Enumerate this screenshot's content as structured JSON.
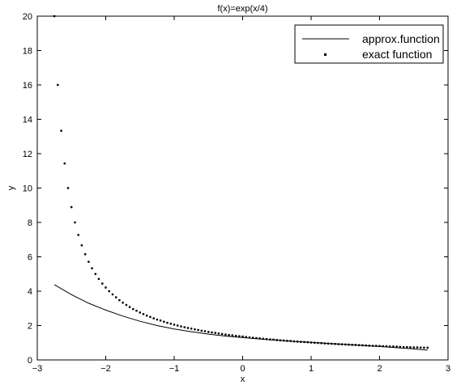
{
  "chart_data": {
    "type": "line",
    "title": "f(x)=exp(x/4)",
    "xlabel": "x",
    "ylabel": "y",
    "xlim": [
      -3,
      3
    ],
    "ylim": [
      0,
      20
    ],
    "xticks": [
      -3,
      -2,
      -1,
      0,
      1,
      2,
      3
    ],
    "yticks": [
      0,
      2,
      4,
      6,
      8,
      10,
      12,
      14,
      16,
      18,
      20
    ],
    "grid": false,
    "legend_position": "top-right",
    "colors": {
      "line": "#000000",
      "background": "#ffffff",
      "axes": "#000000"
    },
    "series": [
      {
        "name": "approx.function",
        "style": "solid-line",
        "x": [
          -2.75,
          -2.5,
          -2.25,
          -2.0,
          -1.75,
          -1.5,
          -1.25,
          -1.0,
          -0.75,
          -0.5,
          -0.25,
          0.0,
          0.25,
          0.5,
          0.75,
          1.0,
          1.25,
          1.5,
          1.75,
          2.0,
          2.25,
          2.5,
          2.7
        ],
        "y": [
          4.38,
          3.8,
          3.3,
          2.9,
          2.55,
          2.25,
          2.0,
          1.8,
          1.64,
          1.5,
          1.39,
          1.3,
          1.22,
          1.15,
          1.08,
          1.02,
          0.96,
          0.9,
          0.84,
          0.78,
          0.71,
          0.64,
          0.57
        ]
      },
      {
        "name": "exact function",
        "style": "dots",
        "x": [
          -2.75,
          -2.7,
          -2.65,
          -2.6,
          -2.55,
          -2.5,
          -2.45,
          -2.4,
          -2.35,
          -2.3,
          -2.25,
          -2.2,
          -2.15,
          -2.1,
          -2.05,
          -2.0,
          -1.95,
          -1.9,
          -1.85,
          -1.8,
          -1.75,
          -1.7,
          -1.65,
          -1.6,
          -1.55,
          -1.5,
          -1.45,
          -1.4,
          -1.35,
          -1.3,
          -1.25,
          -1.2,
          -1.15,
          -1.1,
          -1.05,
          -1.0,
          -0.95,
          -0.9,
          -0.85,
          -0.8,
          -0.75,
          -0.7,
          -0.65,
          -0.6,
          -0.55,
          -0.5,
          -0.45,
          -0.4,
          -0.35,
          -0.3,
          -0.25,
          -0.2,
          -0.15,
          -0.1,
          -0.05,
          0.0,
          0.05,
          0.1,
          0.15,
          0.2,
          0.25,
          0.3,
          0.35,
          0.4,
          0.45,
          0.5,
          0.55,
          0.6,
          0.65,
          0.7,
          0.75,
          0.8,
          0.85,
          0.9,
          0.95,
          1.0,
          1.05,
          1.1,
          1.15,
          1.2,
          1.25,
          1.3,
          1.35,
          1.4,
          1.45,
          1.5,
          1.55,
          1.6,
          1.65,
          1.7,
          1.75,
          1.8,
          1.85,
          1.9,
          1.95,
          2.0,
          2.05,
          2.1,
          2.15,
          2.2,
          2.25,
          2.3,
          2.35,
          2.4,
          2.45,
          2.5,
          2.55,
          2.6,
          2.65,
          2.7
        ],
        "y": [
          20.0,
          16.0,
          13.33,
          11.43,
          10.0,
          8.89,
          8.0,
          7.27,
          6.67,
          6.15,
          5.71,
          5.33,
          5.0,
          4.71,
          4.44,
          4.21,
          4.0,
          3.81,
          3.64,
          3.48,
          3.33,
          3.2,
          3.08,
          2.96,
          2.86,
          2.76,
          2.67,
          2.58,
          2.5,
          2.42,
          2.35,
          2.29,
          2.22,
          2.16,
          2.11,
          2.05,
          2.0,
          1.95,
          1.9,
          1.86,
          1.82,
          1.78,
          1.74,
          1.7,
          1.67,
          1.63,
          1.6,
          1.57,
          1.54,
          1.51,
          1.48,
          1.45,
          1.43,
          1.4,
          1.38,
          1.36,
          1.33,
          1.31,
          1.29,
          1.27,
          1.25,
          1.23,
          1.21,
          1.19,
          1.18,
          1.16,
          1.14,
          1.13,
          1.11,
          1.1,
          1.08,
          1.07,
          1.05,
          1.04,
          1.03,
          1.01,
          1.0,
          0.99,
          0.98,
          0.96,
          0.95,
          0.94,
          0.93,
          0.92,
          0.91,
          0.9,
          0.89,
          0.88,
          0.87,
          0.86,
          0.85,
          0.84,
          0.83,
          0.82,
          0.82,
          0.81,
          0.8,
          0.79,
          0.78,
          0.78,
          0.77,
          0.76,
          0.75,
          0.75,
          0.74,
          0.73,
          0.73,
          0.72,
          0.71,
          0.71
        ]
      }
    ]
  }
}
